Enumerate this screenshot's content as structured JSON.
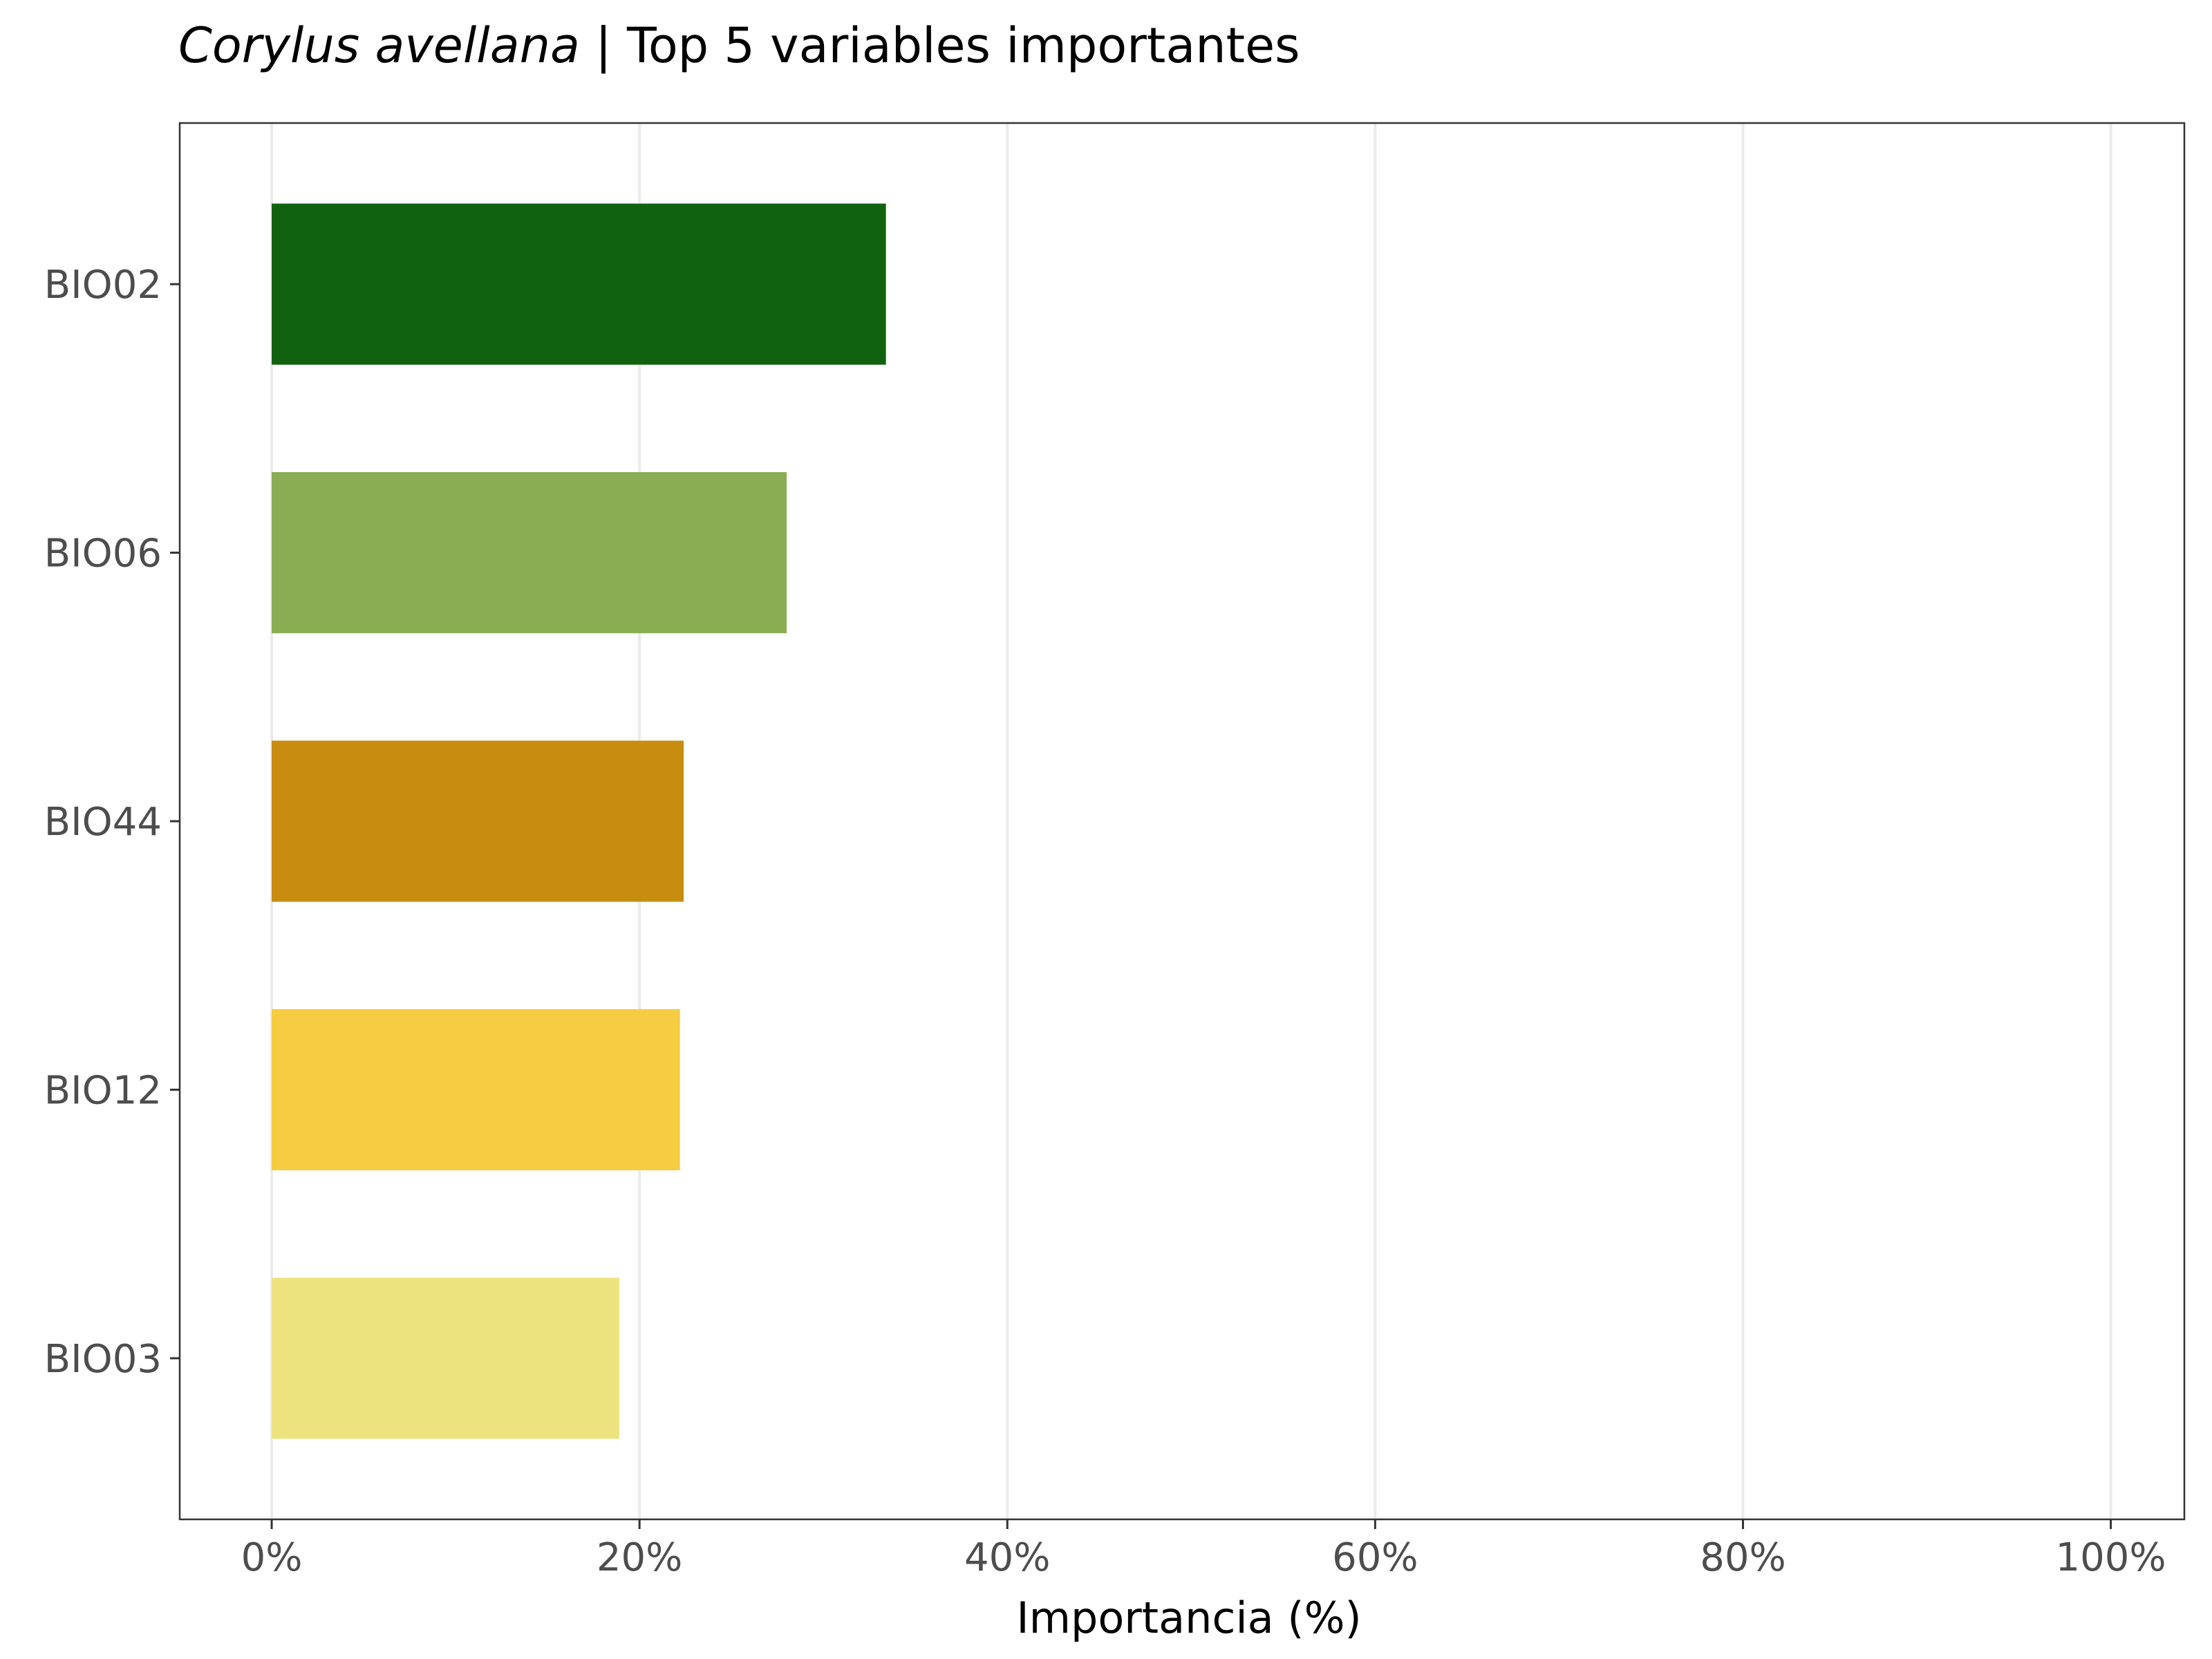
{
  "chart_data": {
    "type": "bar",
    "orientation": "horizontal",
    "title_italic": "Corylus avellana",
    "title_rest": " | Top 5 variables importantes",
    "xlabel": "Importancia (%)",
    "ylabel": "",
    "categories": [
      "BIO02",
      "BIO06",
      "BIO44",
      "BIO12",
      "BIO03"
    ],
    "values": [
      33.4,
      28.0,
      22.4,
      22.2,
      18.9
    ],
    "colors": [
      "#11620f",
      "#8aad54",
      "#c78c10",
      "#f5cc42",
      "#ede37e"
    ],
    "xlim": [
      -5,
      104
    ],
    "x_ticks": [
      0,
      20,
      40,
      60,
      80,
      100
    ],
    "x_tick_labels": [
      "0%",
      "20%",
      "40%",
      "60%",
      "80%",
      "100%"
    ],
    "grid": "vertical major",
    "legend": "none"
  }
}
